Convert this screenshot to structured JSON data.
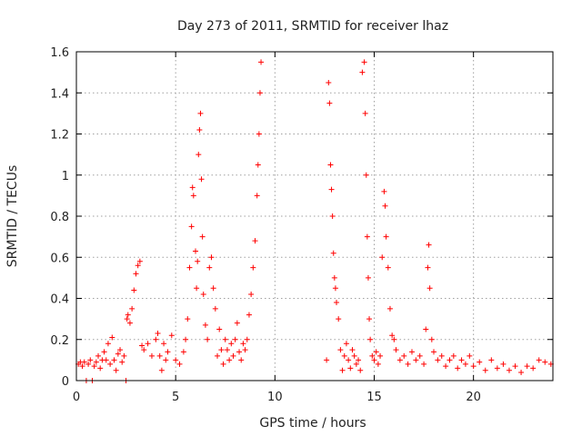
{
  "chart_data": {
    "type": "scatter",
    "title": "Day 273 of 2011, SRMTID for receiver lhaz",
    "xlabel": "GPS time / hours",
    "ylabel": "SRMTID / TECUs",
    "xlim": [
      0,
      24
    ],
    "ylim": [
      0,
      1.6
    ],
    "xticks": [
      0,
      5,
      10,
      15,
      20
    ],
    "yticks": [
      0,
      0.2,
      0.4,
      0.6,
      0.8,
      1,
      1.2,
      1.4,
      1.6
    ],
    "grid": true,
    "marker": "+",
    "marker_color": "#ff0000",
    "series": [
      {
        "points": [
          [
            0.1,
            0.08
          ],
          [
            0.2,
            0.09
          ],
          [
            0.3,
            0.07
          ],
          [
            0.4,
            0.09
          ],
          [
            0.5,
            0.0
          ],
          [
            0.6,
            0.08
          ],
          [
            0.7,
            0.1
          ],
          [
            0.8,
            0.0
          ],
          [
            0.9,
            0.07
          ],
          [
            1.0,
            0.09
          ],
          [
            1.1,
            0.12
          ],
          [
            1.2,
            0.06
          ],
          [
            1.3,
            0.1
          ],
          [
            1.4,
            0.14
          ],
          [
            1.5,
            0.1
          ],
          [
            1.6,
            0.18
          ],
          [
            1.7,
            0.08
          ],
          [
            1.8,
            0.21
          ],
          [
            1.9,
            0.1
          ],
          [
            2.0,
            0.05
          ],
          [
            2.1,
            0.13
          ],
          [
            2.2,
            0.15
          ],
          [
            2.3,
            0.09
          ],
          [
            2.4,
            0.12
          ],
          [
            2.5,
            0.0
          ],
          [
            2.55,
            0.3
          ],
          [
            2.6,
            0.32
          ],
          [
            2.7,
            0.28
          ],
          [
            2.8,
            0.35
          ],
          [
            2.9,
            0.44
          ],
          [
            3.0,
            0.52
          ],
          [
            3.1,
            0.56
          ],
          [
            3.2,
            0.58
          ],
          [
            3.3,
            0.17
          ],
          [
            3.4,
            0.15
          ],
          [
            3.6,
            0.18
          ],
          [
            3.8,
            0.12
          ],
          [
            4.0,
            0.2
          ],
          [
            4.1,
            0.23
          ],
          [
            4.2,
            0.12
          ],
          [
            4.3,
            0.05
          ],
          [
            4.4,
            0.18
          ],
          [
            4.5,
            0.1
          ],
          [
            4.6,
            0.14
          ],
          [
            4.8,
            0.22
          ],
          [
            5.0,
            0.1
          ],
          [
            5.2,
            0.08
          ],
          [
            5.4,
            0.14
          ],
          [
            5.5,
            0.2
          ],
          [
            5.6,
            0.3
          ],
          [
            5.7,
            0.55
          ],
          [
            5.8,
            0.75
          ],
          [
            5.85,
            0.94
          ],
          [
            5.9,
            0.9
          ],
          [
            6.0,
            0.63
          ],
          [
            6.05,
            0.45
          ],
          [
            6.1,
            0.58
          ],
          [
            6.15,
            1.1
          ],
          [
            6.2,
            1.22
          ],
          [
            6.25,
            1.3
          ],
          [
            6.3,
            0.98
          ],
          [
            6.35,
            0.7
          ],
          [
            6.4,
            0.42
          ],
          [
            6.5,
            0.27
          ],
          [
            6.6,
            0.2
          ],
          [
            6.7,
            0.55
          ],
          [
            6.8,
            0.6
          ],
          [
            6.9,
            0.45
          ],
          [
            7.0,
            0.35
          ],
          [
            7.1,
            0.12
          ],
          [
            7.2,
            0.25
          ],
          [
            7.3,
            0.15
          ],
          [
            7.4,
            0.08
          ],
          [
            7.5,
            0.2
          ],
          [
            7.6,
            0.15
          ],
          [
            7.7,
            0.1
          ],
          [
            7.8,
            0.18
          ],
          [
            7.9,
            0.12
          ],
          [
            8.0,
            0.2
          ],
          [
            8.1,
            0.28
          ],
          [
            8.2,
            0.14
          ],
          [
            8.3,
            0.1
          ],
          [
            8.4,
            0.18
          ],
          [
            8.5,
            0.15
          ],
          [
            8.6,
            0.2
          ],
          [
            8.7,
            0.32
          ],
          [
            8.8,
            0.42
          ],
          [
            8.9,
            0.55
          ],
          [
            9.0,
            0.68
          ],
          [
            9.1,
            0.9
          ],
          [
            9.15,
            1.05
          ],
          [
            9.2,
            1.2
          ],
          [
            9.25,
            1.4
          ],
          [
            9.3,
            1.55
          ],
          [
            12.6,
            0.1
          ],
          [
            12.7,
            1.45
          ],
          [
            12.75,
            1.35
          ],
          [
            12.8,
            1.05
          ],
          [
            12.85,
            0.93
          ],
          [
            12.9,
            0.8
          ],
          [
            12.95,
            0.62
          ],
          [
            13.0,
            0.5
          ],
          [
            13.05,
            0.45
          ],
          [
            13.1,
            0.38
          ],
          [
            13.2,
            0.3
          ],
          [
            13.3,
            0.15
          ],
          [
            13.4,
            0.05
          ],
          [
            13.5,
            0.12
          ],
          [
            13.6,
            0.18
          ],
          [
            13.7,
            0.1
          ],
          [
            13.8,
            0.06
          ],
          [
            13.9,
            0.15
          ],
          [
            14.0,
            0.12
          ],
          [
            14.1,
            0.08
          ],
          [
            14.2,
            0.1
          ],
          [
            14.3,
            0.05
          ],
          [
            14.4,
            1.5
          ],
          [
            14.5,
            1.55
          ],
          [
            14.55,
            1.3
          ],
          [
            14.6,
            1.0
          ],
          [
            14.65,
            0.7
          ],
          [
            14.7,
            0.5
          ],
          [
            14.75,
            0.3
          ],
          [
            14.8,
            0.2
          ],
          [
            14.9,
            0.12
          ],
          [
            15.0,
            0.1
          ],
          [
            15.1,
            0.14
          ],
          [
            15.2,
            0.08
          ],
          [
            15.3,
            0.12
          ],
          [
            15.4,
            0.6
          ],
          [
            15.5,
            0.92
          ],
          [
            15.55,
            0.85
          ],
          [
            15.6,
            0.7
          ],
          [
            15.7,
            0.55
          ],
          [
            15.8,
            0.35
          ],
          [
            15.9,
            0.22
          ],
          [
            16.0,
            0.2
          ],
          [
            16.1,
            0.15
          ],
          [
            16.3,
            0.1
          ],
          [
            16.5,
            0.12
          ],
          [
            16.7,
            0.08
          ],
          [
            16.9,
            0.14
          ],
          [
            17.1,
            0.1
          ],
          [
            17.3,
            0.12
          ],
          [
            17.5,
            0.08
          ],
          [
            17.6,
            0.25
          ],
          [
            17.7,
            0.55
          ],
          [
            17.75,
            0.66
          ],
          [
            17.8,
            0.45
          ],
          [
            17.9,
            0.2
          ],
          [
            18.0,
            0.14
          ],
          [
            18.2,
            0.1
          ],
          [
            18.4,
            0.12
          ],
          [
            18.6,
            0.07
          ],
          [
            18.8,
            0.1
          ],
          [
            19.0,
            0.12
          ],
          [
            19.2,
            0.06
          ],
          [
            19.4,
            0.1
          ],
          [
            19.6,
            0.08
          ],
          [
            19.8,
            0.12
          ],
          [
            20.0,
            0.07
          ],
          [
            20.3,
            0.09
          ],
          [
            20.6,
            0.05
          ],
          [
            20.9,
            0.1
          ],
          [
            21.2,
            0.06
          ],
          [
            21.5,
            0.08
          ],
          [
            21.8,
            0.05
          ],
          [
            22.1,
            0.07
          ],
          [
            22.4,
            0.04
          ],
          [
            22.7,
            0.07
          ],
          [
            23.0,
            0.06
          ],
          [
            23.3,
            0.1
          ],
          [
            23.6,
            0.09
          ],
          [
            23.9,
            0.08
          ]
        ]
      }
    ]
  }
}
